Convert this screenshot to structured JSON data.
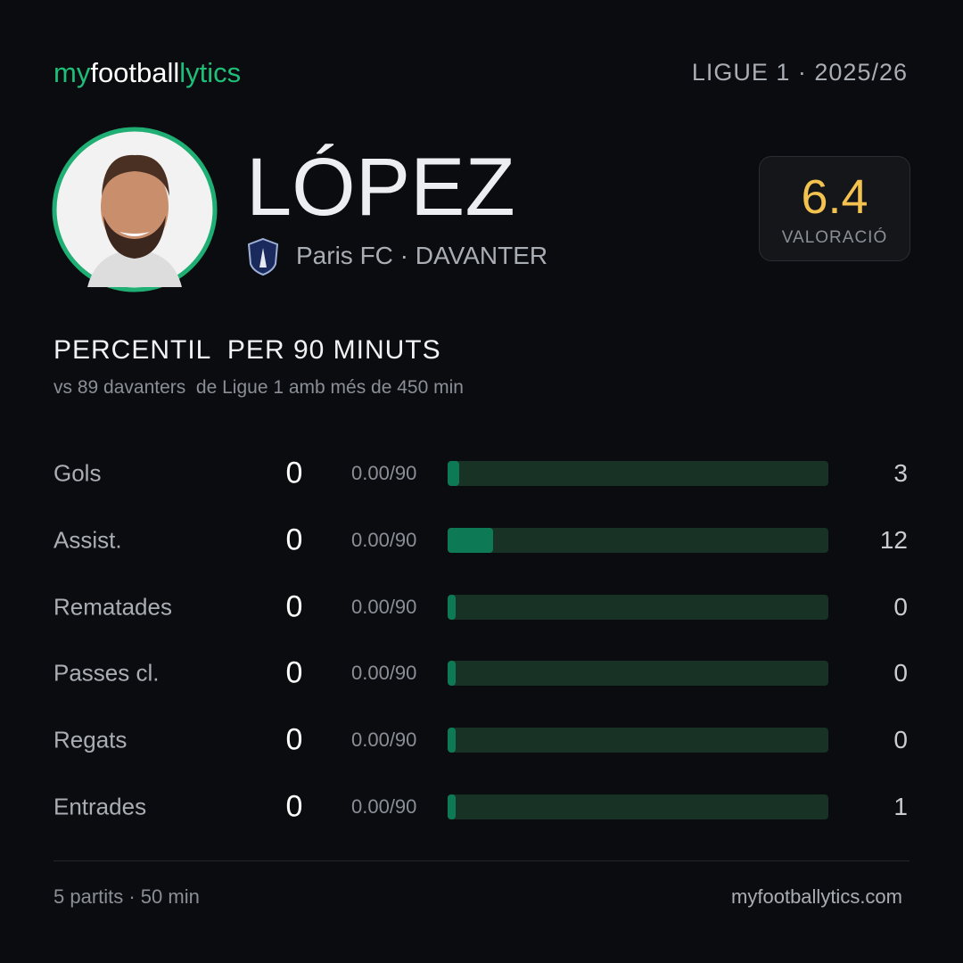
{
  "header": {
    "brand": [
      "my",
      "football",
      "lytics"
    ],
    "league": "LIGUE 1 · 2025/26"
  },
  "player": {
    "name": "LÓPEZ",
    "team": "Paris FC · DAVANTER",
    "rating": 6.4,
    "rating_label": "VALORACIÓ"
  },
  "section": {
    "title": "PERCENTIL  PER 90 MINUTS",
    "subtitle": "vs 89 davanters  de Ligue 1 amb més de 450 min"
  },
  "stats": [
    {
      "label": "Gols",
      "value": 0,
      "per90": "0.00/90",
      "percentile": 3
    },
    {
      "label": "Assist.",
      "value": 0,
      "per90": "0.00/90",
      "percentile": 12
    },
    {
      "label": "Rematades",
      "value": 0,
      "per90": "0.00/90",
      "percentile": 0
    },
    {
      "label": "Passes cl.",
      "value": 0,
      "per90": "0.00/90",
      "percentile": 0
    },
    {
      "label": "Regats",
      "value": 0,
      "per90": "0.00/90",
      "percentile": 0
    },
    {
      "label": "Entrades",
      "value": 0,
      "per90": "0.00/90",
      "percentile": 1
    }
  ],
  "footer": {
    "summary": "5 partits · 50 min",
    "site": "myfootballytics.com"
  }
}
